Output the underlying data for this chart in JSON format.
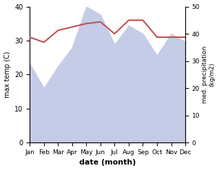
{
  "months": [
    "Jan",
    "Feb",
    "Mar",
    "Apr",
    "May",
    "Jun",
    "Jul",
    "Aug",
    "Sep",
    "Oct",
    "Nov",
    "Dec"
  ],
  "max_temp": [
    31.0,
    29.5,
    33.0,
    34.0,
    35.0,
    35.5,
    32.0,
    36.0,
    36.0,
    31.0,
    31.0,
    31.0
  ],
  "precipitation": [
    29,
    20,
    28,
    35,
    50,
    47,
    36,
    43,
    40,
    32,
    40,
    37
  ],
  "temp_color": "#c0504d",
  "precip_fill_color": "#c5cce8",
  "xlabel": "date (month)",
  "ylabel_left": "max temp (C)",
  "ylabel_right": "med. precipitation\n(kg/m2)",
  "ylim_left": [
    0,
    40
  ],
  "ylim_right": [
    0,
    50
  ],
  "yticks_left": [
    0,
    10,
    20,
    30,
    40
  ],
  "yticks_right": [
    0,
    10,
    20,
    30,
    40,
    50
  ],
  "background_color": "#ffffff",
  "fig_width": 3.18,
  "fig_height": 2.47,
  "dpi": 100
}
